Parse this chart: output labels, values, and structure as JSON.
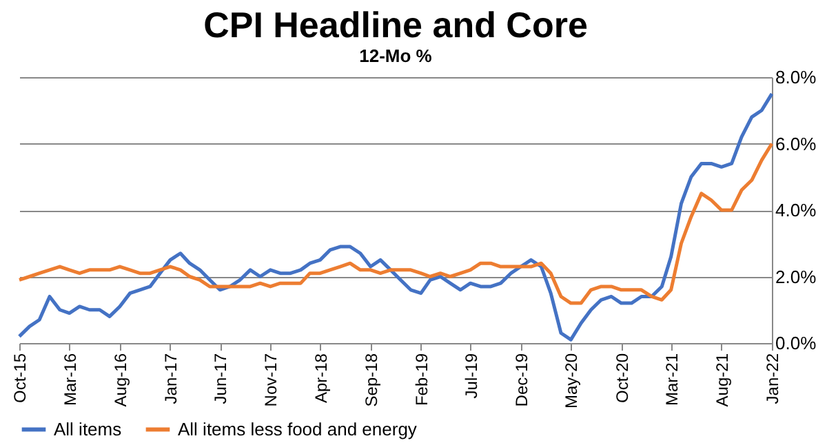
{
  "chart_data": {
    "type": "line",
    "title": "CPI Headline and Core",
    "subtitle": "12-Mo %",
    "x": [
      "2015-10",
      "2015-11",
      "2015-12",
      "2016-01",
      "2016-02",
      "2016-03",
      "2016-04",
      "2016-05",
      "2016-06",
      "2016-07",
      "2016-08",
      "2016-09",
      "2016-10",
      "2016-11",
      "2016-12",
      "2017-01",
      "2017-02",
      "2017-03",
      "2017-04",
      "2017-05",
      "2017-06",
      "2017-07",
      "2017-08",
      "2017-09",
      "2017-10",
      "2017-11",
      "2017-12",
      "2018-01",
      "2018-02",
      "2018-03",
      "2018-04",
      "2018-05",
      "2018-06",
      "2018-07",
      "2018-08",
      "2018-09",
      "2018-10",
      "2018-11",
      "2018-12",
      "2019-01",
      "2019-02",
      "2019-03",
      "2019-04",
      "2019-05",
      "2019-06",
      "2019-07",
      "2019-08",
      "2019-09",
      "2019-10",
      "2019-11",
      "2019-12",
      "2020-01",
      "2020-02",
      "2020-03",
      "2020-04",
      "2020-05",
      "2020-06",
      "2020-07",
      "2020-08",
      "2020-09",
      "2020-10",
      "2020-11",
      "2020-12",
      "2021-01",
      "2021-02",
      "2021-03",
      "2021-04",
      "2021-05",
      "2021-06",
      "2021-07",
      "2021-08",
      "2021-09",
      "2021-10",
      "2021-11",
      "2021-12",
      "2022-01"
    ],
    "series": [
      {
        "name": "All items",
        "color": "#4472c4",
        "values": [
          0.2,
          0.5,
          0.7,
          1.4,
          1.0,
          0.9,
          1.1,
          1.0,
          1.0,
          0.8,
          1.1,
          1.5,
          1.6,
          1.7,
          2.1,
          2.5,
          2.7,
          2.4,
          2.2,
          1.9,
          1.6,
          1.7,
          1.9,
          2.2,
          2.0,
          2.2,
          2.1,
          2.1,
          2.2,
          2.4,
          2.5,
          2.8,
          2.9,
          2.9,
          2.7,
          2.3,
          2.5,
          2.2,
          1.9,
          1.6,
          1.5,
          1.9,
          2.0,
          1.8,
          1.6,
          1.8,
          1.7,
          1.7,
          1.8,
          2.1,
          2.3,
          2.5,
          2.3,
          1.5,
          0.3,
          0.1,
          0.6,
          1.0,
          1.3,
          1.4,
          1.2,
          1.2,
          1.4,
          1.4,
          1.7,
          2.6,
          4.2,
          5.0,
          5.4,
          5.4,
          5.3,
          5.4,
          6.2,
          6.8,
          7.0,
          7.5
        ]
      },
      {
        "name": "All items less food and energy",
        "color": "#ed7d31",
        "values": [
          1.9,
          2.0,
          2.1,
          2.2,
          2.3,
          2.2,
          2.1,
          2.2,
          2.2,
          2.2,
          2.3,
          2.2,
          2.1,
          2.1,
          2.2,
          2.3,
          2.2,
          2.0,
          1.9,
          1.7,
          1.7,
          1.7,
          1.7,
          1.7,
          1.8,
          1.7,
          1.8,
          1.8,
          1.8,
          2.1,
          2.1,
          2.2,
          2.3,
          2.4,
          2.2,
          2.2,
          2.1,
          2.2,
          2.2,
          2.2,
          2.1,
          2.0,
          2.1,
          2.0,
          2.1,
          2.2,
          2.4,
          2.4,
          2.3,
          2.3,
          2.3,
          2.3,
          2.4,
          2.1,
          1.4,
          1.2,
          1.2,
          1.6,
          1.7,
          1.7,
          1.6,
          1.6,
          1.6,
          1.4,
          1.3,
          1.6,
          3.0,
          3.8,
          4.5,
          4.3,
          4.0,
          4.0,
          4.6,
          4.9,
          5.5,
          6.0
        ]
      }
    ],
    "xlim": [
      "2015-10",
      "2022-01"
    ],
    "xticks": [
      {
        "value": "2015-10",
        "label": "Oct-15"
      },
      {
        "value": "2016-03",
        "label": "Mar-16"
      },
      {
        "value": "2016-08",
        "label": "Aug-16"
      },
      {
        "value": "2017-01",
        "label": "Jan-17"
      },
      {
        "value": "2017-06",
        "label": "Jun-17"
      },
      {
        "value": "2017-11",
        "label": "Nov-17"
      },
      {
        "value": "2018-04",
        "label": "Apr-18"
      },
      {
        "value": "2018-09",
        "label": "Sep-18"
      },
      {
        "value": "2019-02",
        "label": "Feb-19"
      },
      {
        "value": "2019-07",
        "label": "Jul-19"
      },
      {
        "value": "2019-12",
        "label": "Dec-19"
      },
      {
        "value": "2020-05",
        "label": "May-20"
      },
      {
        "value": "2020-10",
        "label": "Oct-20"
      },
      {
        "value": "2021-03",
        "label": "Mar-21"
      },
      {
        "value": "2021-08",
        "label": "Aug-21"
      },
      {
        "value": "2022-01",
        "label": "Jan-22"
      }
    ],
    "ylim": [
      0,
      8
    ],
    "yticks": [
      {
        "value": 0,
        "label": "0.0%"
      },
      {
        "value": 2,
        "label": "2.0%"
      },
      {
        "value": 4,
        "label": "4.0%"
      },
      {
        "value": 6,
        "label": "6.0%"
      },
      {
        "value": 8,
        "label": "8.0%"
      }
    ],
    "grid": "y",
    "legend": "bottom",
    "marker": "none",
    "line_style": "solid"
  }
}
